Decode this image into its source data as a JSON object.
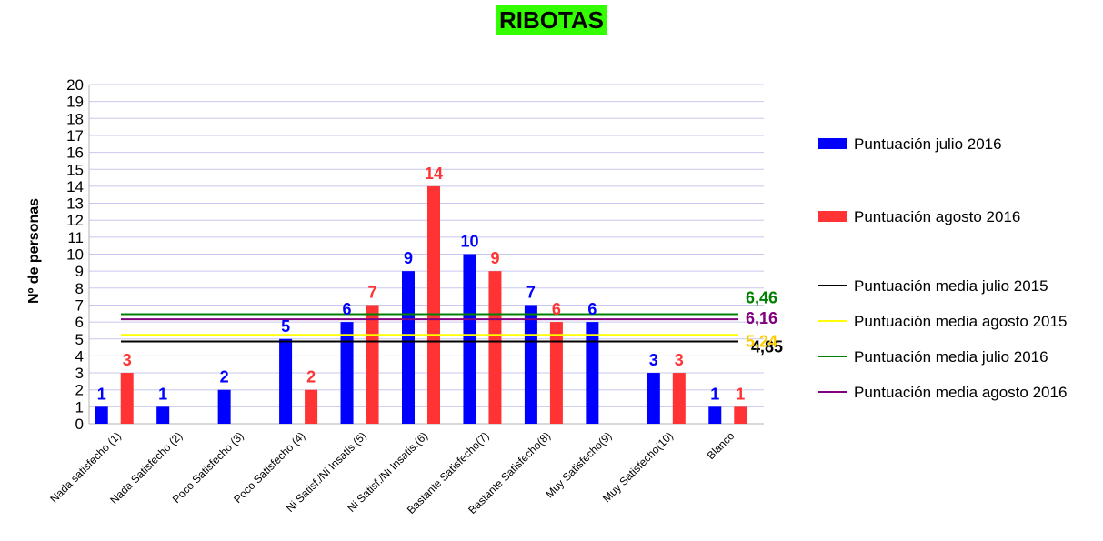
{
  "chart_data": {
    "type": "bar",
    "title": "RIBOTAS",
    "ylabel": "Nº de personas",
    "xlabel": "",
    "ylim": [
      0,
      20
    ],
    "yticks": [
      0,
      1,
      2,
      3,
      4,
      5,
      6,
      7,
      8,
      9,
      10,
      11,
      12,
      13,
      14,
      15,
      16,
      17,
      18,
      19,
      20
    ],
    "grid": true,
    "legend_position": "right",
    "categories": [
      "Nada satisfecho (1)",
      "Nada Satisfecho (2)",
      "Poco Satisfecho (3)",
      "Poco Satisfecho (4)",
      "Ni Satisf./Ni Insatis.(5)",
      "Ni Satisf./Ni Insatis.(6)",
      "Bastante Satisfecho(7)",
      "Bastante Satisfecho(8)",
      "Muy Satisfecho(9)",
      "Muy Satisfecho(10)",
      "Blanco"
    ],
    "series": [
      {
        "name": "Puntuación julio 2016",
        "color": "#0000ff",
        "values": [
          1,
          1,
          2,
          5,
          6,
          9,
          10,
          7,
          6,
          3,
          1
        ]
      },
      {
        "name": "Puntuación agosto 2016",
        "color": "#ff3333",
        "values": [
          3,
          null,
          null,
          2,
          7,
          14,
          9,
          6,
          null,
          3,
          1
        ]
      }
    ],
    "reference_lines": [
      {
        "name": "Puntuación media julio 2015",
        "color": "#000000",
        "value": 4.85,
        "label": "4,85"
      },
      {
        "name": "Puntuación media agosto 2015",
        "color": "#ffff00",
        "value": 5.24,
        "label": "5,24",
        "label_color": "#ffcc00"
      },
      {
        "name": "Puntuación media julio 2016",
        "color": "#008000",
        "value": 6.46,
        "label": "6,46"
      },
      {
        "name": "Puntuación media agosto 2016",
        "color": "#800080",
        "value": 6.16,
        "label": "6,16"
      }
    ]
  }
}
